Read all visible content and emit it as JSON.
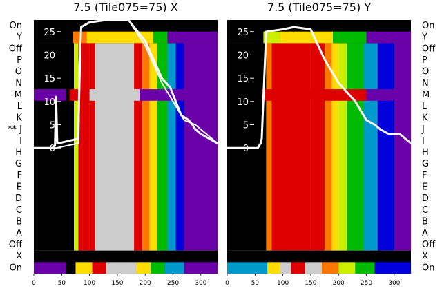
{
  "colors": {
    "background": "#ffffff",
    "trace": "#ffffff",
    "cmap": [
      "#000000",
      "#6a00a8",
      "#0000dd",
      "#0099cc",
      "#00bb00",
      "#ccee00",
      "#ffdd00",
      "#ff7700",
      "#dd0000",
      "#cccccc"
    ]
  },
  "chart_data": [
    {
      "type": "heatmap",
      "title": "7.5 (Tile075=75) X",
      "row_labels_left": [
        "On",
        "Y",
        "Off",
        "P",
        "O",
        "N",
        "M",
        "L",
        "K",
        "** J",
        "I",
        "H",
        "G",
        "F",
        "E",
        "D",
        "C",
        "B",
        "A",
        "Off",
        "X",
        "On"
      ],
      "x_ticks": [
        "0",
        "50",
        "100",
        "150",
        "200",
        "250",
        "300"
      ],
      "y_ticks": [
        "0",
        "5",
        "10",
        "15",
        "20",
        "25"
      ],
      "xlim": [
        0,
        330
      ],
      "ylim": [
        -27,
        27.5
      ],
      "columns": [
        {
          "x": [
            0,
            62
          ],
          "v": 0
        },
        {
          "x": [
            62,
            65
          ],
          "v": 0.6
        },
        {
          "x": [
            65,
            72
          ],
          "v": 0
        },
        {
          "x": [
            72,
            80
          ],
          "v": 5
        },
        {
          "x": [
            80,
            88
          ],
          "v": 8
        },
        {
          "x": [
            88,
            100
          ],
          "v": 8
        },
        {
          "x": [
            100,
            110
          ],
          "v": 8
        },
        {
          "x": [
            110,
            180
          ],
          "v": 9
        },
        {
          "x": [
            180,
            195
          ],
          "v": 8
        },
        {
          "x": [
            195,
            208
          ],
          "v": 7
        },
        {
          "x": [
            208,
            222
          ],
          "v": 6
        },
        {
          "x": [
            222,
            240
          ],
          "v": 4
        },
        {
          "x": [
            240,
            255
          ],
          "v": 3
        },
        {
          "x": [
            255,
            270
          ],
          "v": 2
        },
        {
          "x": [
            270,
            330
          ],
          "v": 1
        }
      ],
      "band_rows": [
        {
          "row": "On",
          "cols": [
            {
              "x": [
                0,
                58
              ],
              "v": 1
            },
            {
              "x": [
                58,
                75
              ],
              "v": 0
            },
            {
              "x": [
                75,
                105
              ],
              "v": 6
            },
            {
              "x": [
                105,
                130
              ],
              "v": 8
            },
            {
              "x": [
                130,
                185
              ],
              "v": 9
            },
            {
              "x": [
                185,
                210
              ],
              "v": 6
            },
            {
              "x": [
                210,
                235
              ],
              "v": 4
            },
            {
              "x": [
                235,
                270
              ],
              "v": 3
            },
            {
              "x": [
                270,
                330
              ],
              "v": 1
            }
          ]
        },
        {
          "row": "M",
          "cols": [
            {
              "x": [
                0,
                58
              ],
              "v": 1
            },
            {
              "x": [
                58,
                64
              ],
              "v": 0
            },
            {
              "x": [
                64,
                100
              ],
              "v": 8
            },
            {
              "x": [
                100,
                190
              ],
              "v": 9
            },
            {
              "x": [
                190,
                330
              ],
              "v": 1
            }
          ]
        },
        {
          "row": "Y",
          "cols": [
            {
              "x": [
                0,
                70
              ],
              "v": 0
            },
            {
              "x": [
                70,
                95
              ],
              "v": 7
            },
            {
              "x": [
                95,
                185
              ],
              "v": 6
            },
            {
              "x": [
                185,
                215
              ],
              "v": 6
            },
            {
              "x": [
                215,
                240
              ],
              "v": 4
            },
            {
              "x": [
                240,
                330
              ],
              "v": 1
            }
          ]
        }
      ],
      "series": [
        {
          "x": [
            0,
            35,
            38,
            40,
            42,
            44,
            80,
            82,
            85,
            100,
            130,
            170,
            200,
            230,
            245,
            255,
            265,
            278,
            285,
            290,
            300,
            330
          ],
          "y": [
            0,
            0,
            0.5,
            11,
            1,
            1,
            2,
            18,
            26,
            27,
            27.5,
            27.5,
            23,
            15,
            13,
            10,
            7,
            6,
            5,
            4,
            3,
            1
          ]
        },
        {
          "x": [
            0,
            40,
            80,
            85,
            100,
            130,
            170,
            200,
            230,
            250,
            270,
            290,
            310,
            330
          ],
          "y": [
            0,
            0,
            1,
            26,
            27,
            27.5,
            27.5,
            22,
            14,
            10,
            6,
            5,
            3,
            1
          ]
        }
      ]
    },
    {
      "type": "heatmap",
      "title": "7.5 (Tile075=75) Y",
      "row_labels_right": [
        "On",
        "Y",
        "Off",
        "P",
        "O",
        "N",
        "M",
        "L",
        "K",
        "J",
        "I",
        "H",
        "G",
        "F",
        "E",
        "D",
        "C",
        "B",
        "A",
        "Off",
        "X",
        "On"
      ],
      "x_ticks": [
        "0",
        "50",
        "100",
        "150",
        "200",
        "250",
        "300"
      ],
      "y_ticks": [
        "0",
        "5",
        "10",
        "15",
        "20",
        "25"
      ],
      "xlim": [
        0,
        330
      ],
      "ylim": [
        -27,
        27.5
      ],
      "columns": [
        {
          "x": [
            0,
            62
          ],
          "v": 0
        },
        {
          "x": [
            62,
            70
          ],
          "v": 0
        },
        {
          "x": [
            70,
            80
          ],
          "v": 7
        },
        {
          "x": [
            80,
            150
          ],
          "v": 8
        },
        {
          "x": [
            150,
            175
          ],
          "v": 8
        },
        {
          "x": [
            175,
            188
          ],
          "v": 7
        },
        {
          "x": [
            188,
            200
          ],
          "v": 6
        },
        {
          "x": [
            200,
            215
          ],
          "v": 5
        },
        {
          "x": [
            215,
            245
          ],
          "v": 4
        },
        {
          "x": [
            245,
            270
          ],
          "v": 3
        },
        {
          "x": [
            270,
            300
          ],
          "v": 2
        },
        {
          "x": [
            300,
            330
          ],
          "v": 1
        }
      ],
      "band_rows": [
        {
          "row": "On",
          "cols": [
            {
              "x": [
                0,
                72
              ],
              "v": 3
            },
            {
              "x": [
                72,
                95
              ],
              "v": 6
            },
            {
              "x": [
                95,
                115
              ],
              "v": 9
            },
            {
              "x": [
                115,
                140
              ],
              "v": 8
            },
            {
              "x": [
                140,
                170
              ],
              "v": 9
            },
            {
              "x": [
                170,
                200
              ],
              "v": 7
            },
            {
              "x": [
                200,
                230
              ],
              "v": 5
            },
            {
              "x": [
                230,
                265
              ],
              "v": 4
            },
            {
              "x": [
                265,
                330
              ],
              "v": 2
            }
          ]
        },
        {
          "row": "M",
          "cols": [
            {
              "x": [
                0,
                62
              ],
              "v": 0
            },
            {
              "x": [
                62,
                80
              ],
              "v": 8
            },
            {
              "x": [
                80,
                250
              ],
              "v": 8
            },
            {
              "x": [
                250,
                330
              ],
              "v": 1
            }
          ]
        },
        {
          "row": "Y",
          "cols": [
            {
              "x": [
                0,
                65
              ],
              "v": 0
            },
            {
              "x": [
                65,
                95
              ],
              "v": 5
            },
            {
              "x": [
                95,
                190
              ],
              "v": 6
            },
            {
              "x": [
                190,
                250
              ],
              "v": 4
            },
            {
              "x": [
                250,
                330
              ],
              "v": 1
            }
          ]
        }
      ],
      "series": [
        {
          "x": [
            0,
            55,
            60,
            62,
            70,
            100,
            120,
            150,
            175,
            200,
            230,
            250,
            265,
            275,
            290,
            310,
            330
          ],
          "y": [
            0,
            0,
            1,
            2,
            25,
            25.5,
            26,
            25.5,
            19,
            14,
            10,
            6,
            5,
            4,
            3,
            3,
            1
          ]
        }
      ]
    }
  ]
}
